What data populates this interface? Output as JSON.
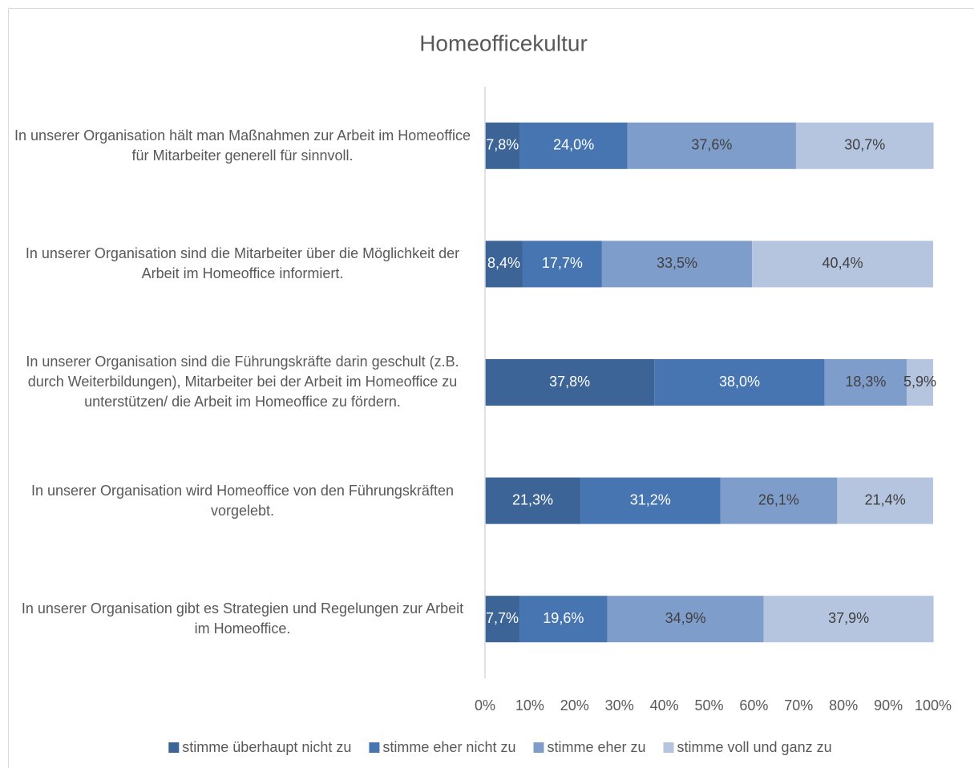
{
  "chart_data": {
    "type": "stacked_barh",
    "title": "Homeofficekultur",
    "categories": [
      "In unserer Organisation hält man Maßnahmen zur Arbeit im Homeoffice für Mitarbeiter generell für sinnvoll.",
      "In unserer Organisation sind die Mitarbeiter über die Möglichkeit der Arbeit im Homeoffice informiert.",
      "In unserer Organisation sind die Führungskräfte darin geschult (z.B. durch Weiterbildungen), Mitarbeiter bei der Arbeit im Homeoffice zu unterstützen/ die Arbeit im Homeoffice zu fördern.",
      "In unserer Organisation wird Homeoffice von den Führungskräften vorgelebt.",
      "In unserer Organisation gibt es Strategien und Regelungen zur Arbeit im Homeoffice."
    ],
    "series": [
      {
        "name": "stimme überhaupt nicht zu",
        "color": "#3c6497",
        "values": [
          7.8,
          8.4,
          37.8,
          21.3,
          7.7
        ],
        "value_labels": [
          "7,8%",
          "8,4%",
          "37,8%",
          "21,3%",
          "7,7%"
        ]
      },
      {
        "name": "stimme eher nicht zu",
        "color": "#4675b1",
        "values": [
          24.0,
          17.7,
          38.0,
          31.2,
          19.6
        ],
        "value_labels": [
          "24,0%",
          "17,7%",
          "38,0%",
          "31,2%",
          "19,6%"
        ]
      },
      {
        "name": "stimme eher zu",
        "color": "#7f9dca",
        "values": [
          37.6,
          33.5,
          18.3,
          26.1,
          34.9
        ],
        "value_labels": [
          "37,6%",
          "33,5%",
          "18,3%",
          "26,1%",
          "34,9%"
        ]
      },
      {
        "name": "stimme voll und ganz zu",
        "color": "#b5c4df",
        "values": [
          30.7,
          40.4,
          5.9,
          21.4,
          37.9
        ],
        "value_labels": [
          "30,7%",
          "40,4%",
          "5,9%",
          "21,4%",
          "37,9%"
        ]
      }
    ],
    "xlim": [
      0,
      100
    ],
    "xticks": [
      {
        "value": 0,
        "label": "0%"
      },
      {
        "value": 10,
        "label": "10%"
      },
      {
        "value": 20,
        "label": "20%"
      },
      {
        "value": 30,
        "label": "30%"
      },
      {
        "value": 40,
        "label": "40%"
      },
      {
        "value": 50,
        "label": "50%"
      },
      {
        "value": 60,
        "label": "60%"
      },
      {
        "value": 70,
        "label": "70%"
      },
      {
        "value": 80,
        "label": "80%"
      },
      {
        "value": 90,
        "label": "90%"
      },
      {
        "value": 100,
        "label": "100%"
      }
    ],
    "legend": "bottom"
  }
}
